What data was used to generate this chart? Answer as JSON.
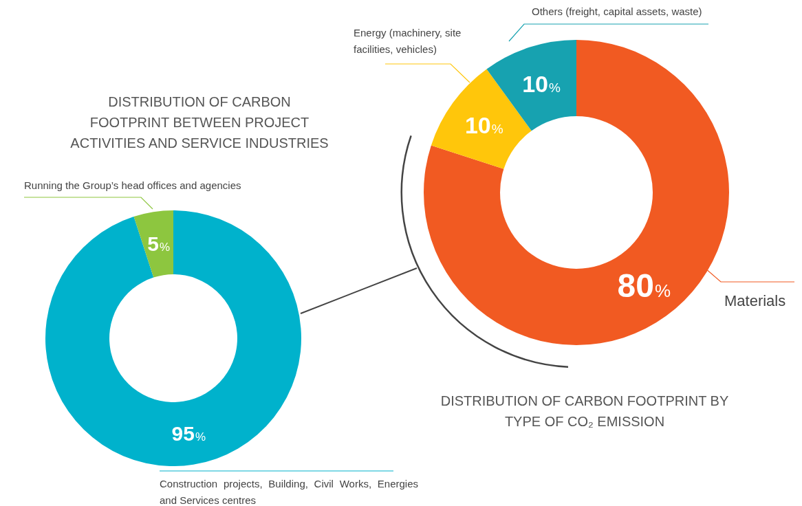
{
  "chart_data": [
    {
      "type": "donut",
      "title": "DISTRIBUTION OF CARBON FOOTPRINT BETWEEN PROJECT ACTIVITIES AND SERVICE INDUSTRIES",
      "categories": [
        "Construction projects, Building, Civil Works, Energies and Services centres",
        "Running the Group’s head offices and agencies"
      ],
      "values": [
        95,
        5
      ],
      "colors": [
        "#00b2cc",
        "#8dc63f"
      ],
      "value_labels": [
        "95%",
        "5%"
      ]
    },
    {
      "type": "donut",
      "title": "DISTRIBUTION OF CARBON FOOTPRINT BY TYPE OF CO₂ EMISSION",
      "categories": [
        "Materials",
        "Energy (machinery, site facilities, vehicles)",
        "Others (freight, capital assets, waste)"
      ],
      "values": [
        80,
        10,
        10
      ],
      "colors": [
        "#f15a22",
        "#ffc60b",
        "#17a2b0"
      ],
      "value_labels": [
        "80%",
        "10%",
        "10%"
      ]
    }
  ]
}
